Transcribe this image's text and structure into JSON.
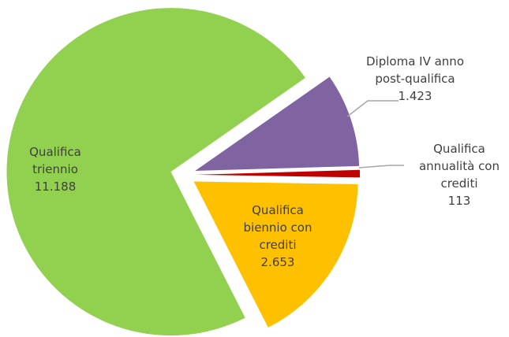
{
  "chart_data": {
    "type": "pie",
    "categories": [
      "Diploma IV anno post-qualifica",
      "Qualifica annualità con crediti",
      "Qualifica biennio con crediti",
      "Qualifica triennio"
    ],
    "values": [
      1423,
      113,
      2653,
      11188
    ],
    "value_labels": [
      "1.423",
      "113",
      "2.653",
      "11.188"
    ],
    "colors": [
      "#8064a2",
      "#c00000",
      "#ffc000",
      "#92d050"
    ]
  }
}
